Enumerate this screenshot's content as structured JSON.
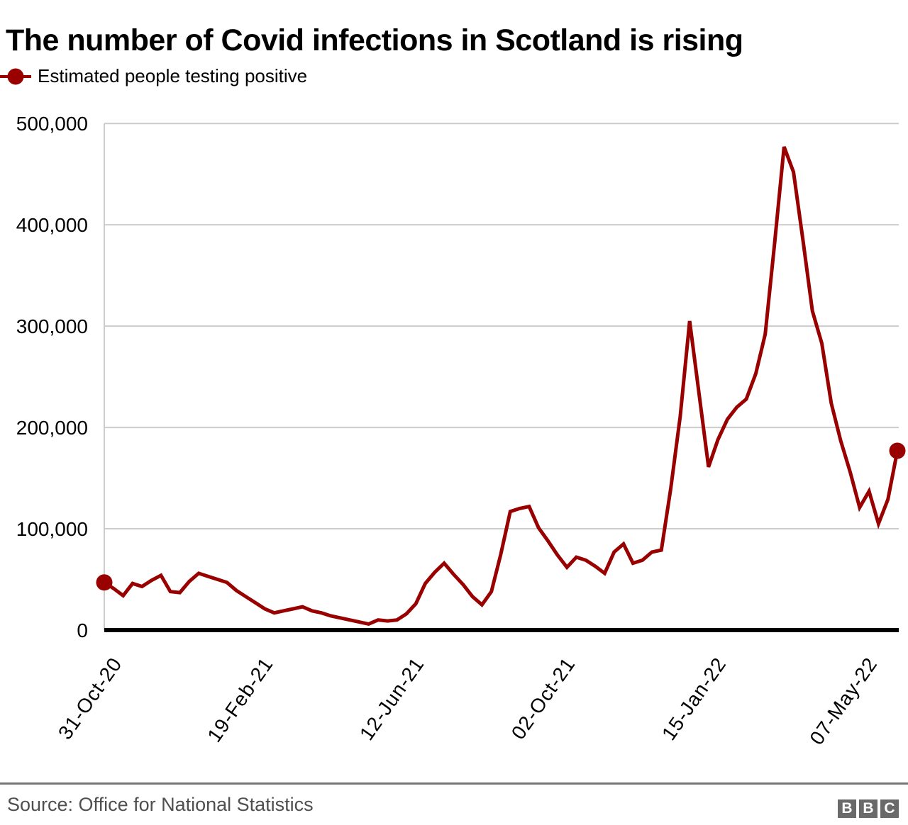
{
  "title": "The number of Covid infections in Scotland is rising",
  "legend": {
    "label": "Estimated people testing positive"
  },
  "footer": {
    "source": "Source: Office for National Statistics",
    "logo_letters": [
      "B",
      "B",
      "C"
    ]
  },
  "colors": {
    "series": "#990000",
    "grid": "#cccccc",
    "spine": "#cccccc",
    "axis": "#000000",
    "text": "#000000",
    "muted_text": "#4f4f4f",
    "divider": "#777777",
    "logo_block": "#6a6a6a"
  },
  "chart_data": {
    "type": "line",
    "title": "The number of Covid infections in Scotland is rising",
    "series_name": "Estimated people testing positive",
    "xlabel": "",
    "ylabel": "",
    "ylim": [
      0,
      500000
    ],
    "y_ticks": [
      0,
      100000,
      200000,
      300000,
      400000,
      500000
    ],
    "x_tick_labels": [
      "31-Oct-20",
      "19-Feb-21",
      "12-Jun-21",
      "02-Oct-21",
      "15-Jan-22",
      "07-May-22"
    ],
    "x_tick_indices": [
      0,
      16,
      32,
      48,
      64,
      80
    ],
    "grid": "horizontal",
    "legend_position": "top-left",
    "line_color": "#990000",
    "marker": "filled circle on first and last point",
    "points": 85,
    "values": [
      47000,
      41000,
      34000,
      46000,
      43000,
      49000,
      54000,
      38000,
      37000,
      48000,
      56000,
      53000,
      50000,
      47000,
      39000,
      33000,
      27000,
      21000,
      17000,
      19000,
      21000,
      23000,
      19000,
      17000,
      14000,
      12000,
      10000,
      8000,
      6000,
      10000,
      9000,
      10000,
      16000,
      26000,
      46000,
      57000,
      66000,
      55000,
      45000,
      33000,
      25000,
      38000,
      75000,
      117000,
      120000,
      122000,
      101000,
      88000,
      74000,
      62000,
      72000,
      69000,
      63000,
      56000,
      77000,
      85000,
      66000,
      69000,
      77000,
      79000,
      140000,
      211000,
      305000,
      233000,
      161000,
      188000,
      208000,
      220000,
      228000,
      253000,
      292000,
      382000,
      477000,
      452000,
      385000,
      315000,
      283000,
      224000,
      187000,
      156000,
      121000,
      137000,
      105000,
      129000,
      177000
    ]
  }
}
